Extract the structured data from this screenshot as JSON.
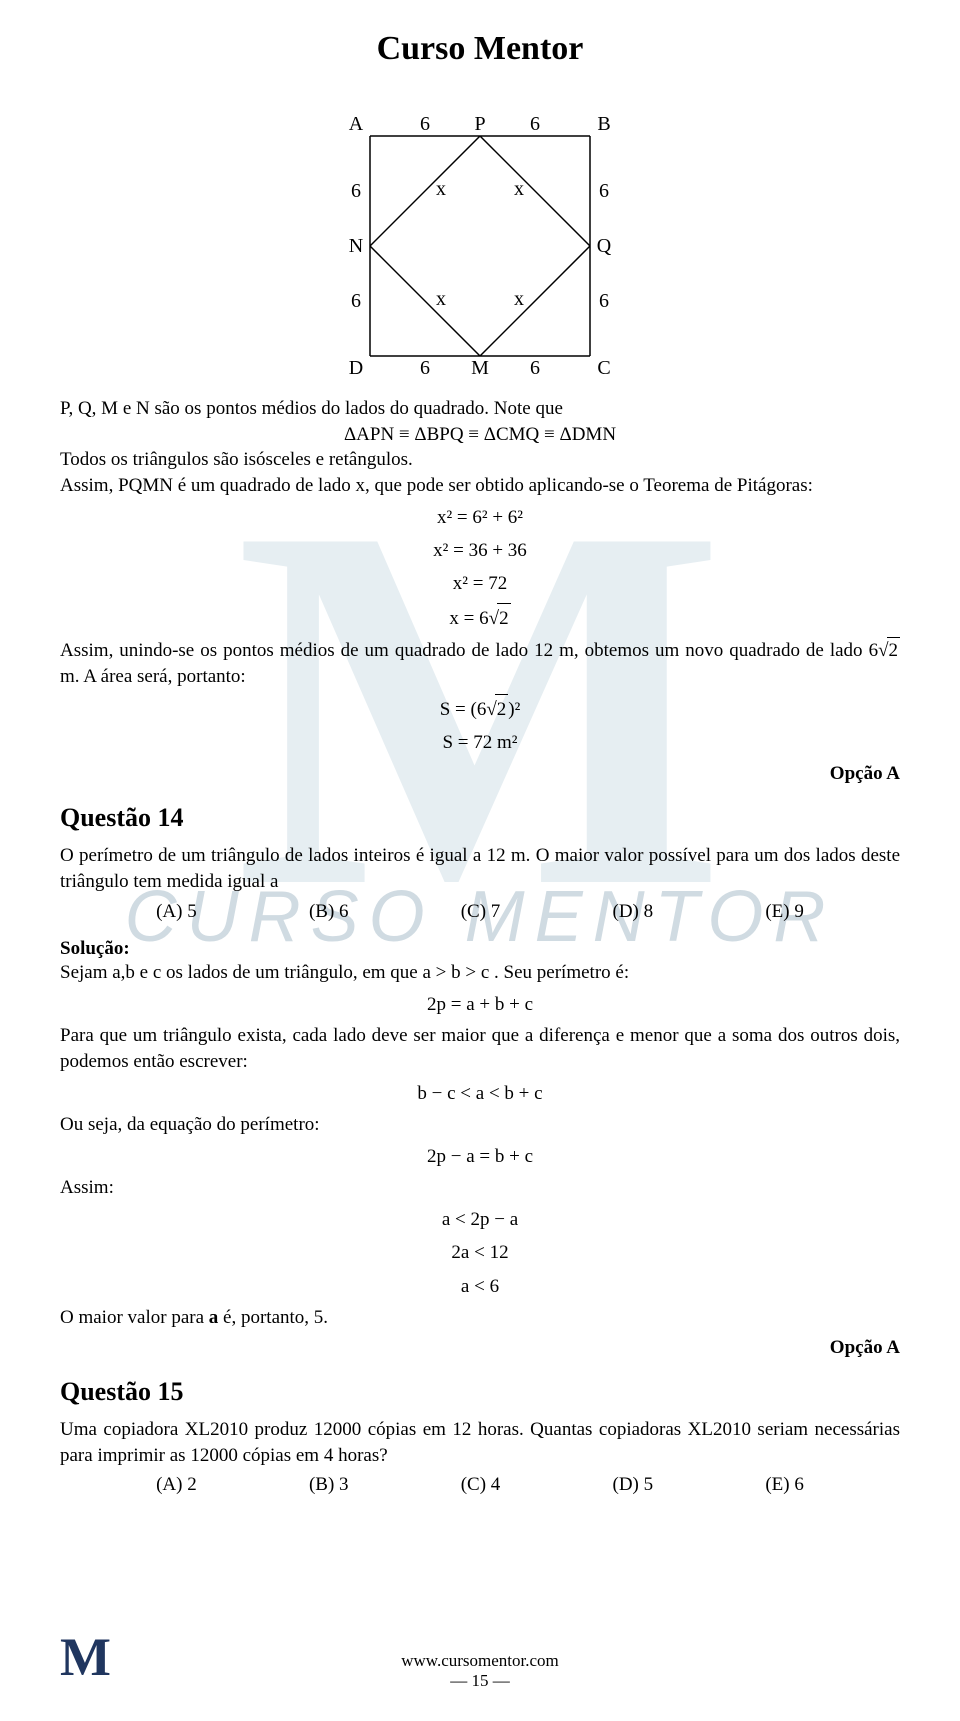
{
  "title": "Curso Mentor",
  "watermark": {
    "m": "M",
    "text": "CURSO MENTOR"
  },
  "diagram": {
    "labels": {
      "A": "A",
      "P": "P",
      "B": "B",
      "N": "N",
      "Q": "Q",
      "D": "D",
      "M": "M",
      "C": "C",
      "six": "6",
      "x": "x"
    },
    "square_size": 220,
    "stroke": "#000000",
    "stroke_width": 1.5,
    "font_size": 20
  },
  "text": {
    "line1": "P, Q, M e N são os pontos médios do lados do quadrado. Note que",
    "congr": "ΔAPN ≡ ΔBPQ ≡ ΔCMQ ≡ ΔDMN",
    "line2": "Todos os triângulos são isósceles e retângulos.",
    "line3": "Assim, PQMN é um quadrado de lado x, que pode ser obtido aplicando-se o Teorema de Pitágoras:",
    "eq1": "x² = 6² + 6²",
    "eq2": "x² = 36 + 36",
    "eq3": "x² = 72",
    "eq4_lead": "x = 6",
    "eq4_rad": "2",
    "line4a": "Assim, unindo-se os pontos médios de um quadrado de lado 12 m, obtemos um novo quadrado de lado ",
    "line4b": "6",
    "line4c": " m. A área será, portanto:",
    "eq5_lead": "S = (6",
    "eq5_rad": "2",
    "eq5_tail": ")²",
    "eq6": "S = 72 m²",
    "opcaoA": "Opção A",
    "q14": "Questão 14",
    "q14_enun": "O perímetro de um triângulo de lados inteiros é igual a 12 m. O maior valor possível para um dos lados deste triângulo tem medida igual a",
    "q14_choices": {
      "A": "(A) 5",
      "B": "(B) 6",
      "C": "(C) 7",
      "D": "(D) 8",
      "E": "(E) 9"
    },
    "sol": "Solução:",
    "sol1": "Sejam a,b e c os lados de um triângulo, em que a > b > c . Seu perímetro é:",
    "sol_eq1": "2p = a + b + c",
    "sol2": "Para que um triângulo exista, cada lado deve ser maior que a diferença e menor que a soma dos outros dois, podemos então escrever:",
    "sol_eq2": "b − c < a < b + c",
    "sol3": "Ou seja, da equação do perímetro:",
    "sol_eq3": "2p − a = b + c",
    "sol4": "Assim:",
    "sol_eq4": "a < 2p − a",
    "sol_eq5": "2a < 12",
    "sol_eq6": "a < 6",
    "sol5": "O maior valor para a é, portanto, 5.",
    "q15": "Questão 15",
    "q15_enun": "Uma copiadora XL2010 produz 12000 cópias em 12 horas. Quantas copiadoras XL2010 seriam necessárias para imprimir as 12000 cópias em 4 horas?",
    "q15_choices": {
      "A": "(A) 2",
      "B": "(B) 3",
      "C": "(C) 4",
      "D": "(D) 5",
      "E": "(E) 6"
    }
  },
  "footer": {
    "logo": "M",
    "url": "www.cursomentor.com",
    "page": "— 15 —"
  },
  "colors": {
    "background": "#ffffff",
    "text": "#000000",
    "watermark": "#e6eef2",
    "watermark_text": "#d0dbe2",
    "footer_logo": "#20365f"
  }
}
